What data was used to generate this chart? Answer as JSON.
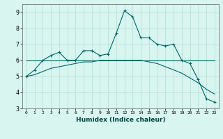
{
  "xlabel": "Humidex (Indice chaleur)",
  "x": [
    0,
    1,
    2,
    3,
    4,
    5,
    6,
    7,
    8,
    9,
    10,
    11,
    12,
    13,
    14,
    15,
    16,
    17,
    18,
    19,
    20,
    21,
    22,
    23
  ],
  "line1": [
    5.0,
    5.4,
    6.0,
    6.3,
    6.5,
    6.0,
    6.0,
    6.6,
    6.6,
    6.3,
    6.4,
    7.7,
    9.1,
    8.7,
    7.4,
    7.4,
    7.0,
    6.9,
    7.0,
    6.0,
    5.8,
    4.8,
    3.6,
    3.4
  ],
  "line2": [
    6.0,
    6.0,
    6.0,
    6.0,
    6.0,
    6.0,
    6.0,
    6.0,
    6.0,
    6.0,
    6.0,
    6.0,
    6.0,
    6.0,
    6.0,
    6.0,
    6.0,
    6.0,
    6.0,
    6.0,
    6.0,
    6.0,
    6.0,
    6.0
  ],
  "line3": [
    5.0,
    5.1,
    5.3,
    5.5,
    5.6,
    5.7,
    5.8,
    5.9,
    5.9,
    6.0,
    6.0,
    6.0,
    6.0,
    6.0,
    6.0,
    5.9,
    5.8,
    5.6,
    5.4,
    5.2,
    4.9,
    4.6,
    4.2,
    3.9
  ],
  "line_color": "#006666",
  "bg_color": "#d8f5f0",
  "grid_color": "#b0ddd8",
  "ylim": [
    3,
    9.5
  ],
  "yticks": [
    3,
    4,
    5,
    6,
    7,
    8,
    9
  ],
  "xticks": [
    0,
    1,
    2,
    3,
    4,
    5,
    6,
    7,
    8,
    9,
    10,
    11,
    12,
    13,
    14,
    15,
    16,
    17,
    18,
    19,
    20,
    21,
    22,
    23
  ]
}
